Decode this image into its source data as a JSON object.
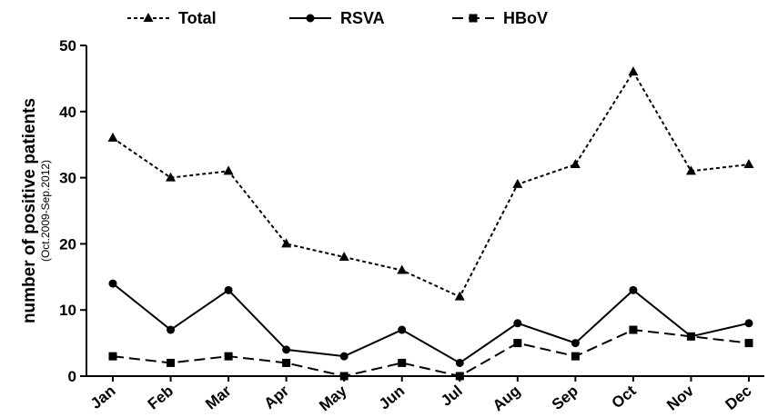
{
  "chart_data": {
    "type": "line",
    "title": "",
    "xlabel": "",
    "ylabel": "number of positive patients",
    "ylabel_sub": "(Oct.2009-Sep.2012)",
    "categories": [
      "Jan",
      "Feb",
      "Mar",
      "Apr",
      "May",
      "Jun",
      "Jul",
      "Aug",
      "Sep",
      "Oct",
      "Nov",
      "Dec"
    ],
    "ylim": [
      0,
      50
    ],
    "yticks": [
      0,
      10,
      20,
      30,
      40,
      50
    ],
    "grid": false,
    "legend_position": "top",
    "series": [
      {
        "name": "Total",
        "values": [
          36,
          30,
          31,
          20,
          18,
          16,
          12,
          29,
          32,
          46,
          31,
          32
        ],
        "marker": "triangle",
        "line_style": "dotted",
        "color": "#000000"
      },
      {
        "name": "RSVA",
        "values": [
          14,
          7,
          13,
          4,
          3,
          7,
          2,
          8,
          5,
          13,
          6,
          8
        ],
        "marker": "circle",
        "line_style": "solid",
        "color": "#000000"
      },
      {
        "name": "HBoV",
        "values": [
          3,
          2,
          3,
          2,
          0,
          2,
          0,
          5,
          3,
          7,
          6,
          5
        ],
        "marker": "square",
        "line_style": "dashed",
        "color": "#000000"
      }
    ]
  }
}
